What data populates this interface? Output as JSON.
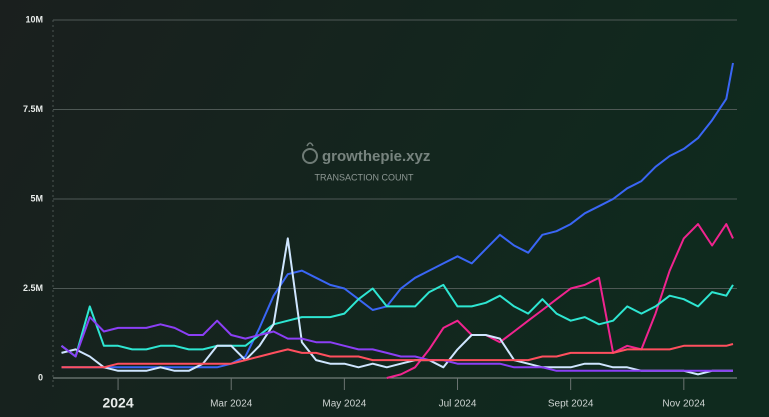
{
  "chart_data": {
    "type": "line",
    "title": "TRANSACTION COUNT",
    "watermark": "growthepie.xyz",
    "x": [
      -1,
      -0.75,
      -0.5,
      -0.25,
      0,
      0.25,
      0.5,
      0.75,
      1,
      1.25,
      1.5,
      1.75,
      2,
      2.25,
      2.5,
      2.75,
      3,
      3.25,
      3.5,
      3.75,
      4,
      4.25,
      4.5,
      4.75,
      5,
      5.25,
      5.5,
      5.75,
      6,
      6.25,
      6.5,
      6.75,
      7,
      7.25,
      7.5,
      7.75,
      8,
      8.25,
      8.5,
      8.75,
      9,
      9.25,
      9.5,
      9.75,
      10,
      10.25,
      10.5,
      10.75,
      10.87
    ],
    "xlim": [
      -1.15,
      10.94
    ],
    "xticks": [
      {
        "value": 0,
        "label": "2024"
      },
      {
        "value": 2,
        "label": "Mar 2024"
      },
      {
        "value": 4,
        "label": "May 2024"
      },
      {
        "value": 6,
        "label": "Jul 2024"
      },
      {
        "value": 8,
        "label": "Sept 2024"
      },
      {
        "value": 10,
        "label": "Nov 2024"
      }
    ],
    "ylim": [
      0,
      10
    ],
    "yticks": [
      0,
      {
        "value": 2.5,
        "label": "2.5M"
      },
      {
        "value": 5,
        "label": "5M"
      },
      {
        "value": 7.5,
        "label": "7.5M"
      },
      {
        "value": 10,
        "label": "10M"
      }
    ],
    "grid": true,
    "series": [
      {
        "color": "#3a66f5",
        "values": [
          0.3,
          0.3,
          0.3,
          0.3,
          0.3,
          0.3,
          0.3,
          0.3,
          0.3,
          0.3,
          0.3,
          0.3,
          0.4,
          0.6,
          1.4,
          2.3,
          2.9,
          3.0,
          2.8,
          2.6,
          2.5,
          2.2,
          1.9,
          2.0,
          2.5,
          2.8,
          3.0,
          3.2,
          3.4,
          3.2,
          3.6,
          4.0,
          3.7,
          3.5,
          4.0,
          4.1,
          4.3,
          4.6,
          4.8,
          5.0,
          5.3,
          5.5,
          5.9,
          6.2,
          6.4,
          6.7,
          7.2,
          7.8,
          8.8
        ]
      },
      {
        "color": "#f0248f",
        "values": [
          null,
          null,
          null,
          null,
          null,
          null,
          null,
          null,
          null,
          null,
          null,
          null,
          null,
          null,
          null,
          null,
          null,
          null,
          null,
          null,
          null,
          null,
          null,
          0.0,
          0.1,
          0.3,
          0.8,
          1.4,
          1.6,
          1.2,
          1.2,
          1.0,
          1.3,
          1.6,
          1.9,
          2.2,
          2.5,
          2.6,
          2.8,
          0.7,
          0.9,
          0.8,
          1.8,
          3.0,
          3.9,
          4.3,
          3.7,
          4.3,
          3.9
        ]
      },
      {
        "color": "#2ee6d2",
        "values": [
          0.9,
          0.6,
          2.0,
          0.9,
          0.9,
          0.8,
          0.8,
          0.9,
          0.9,
          0.8,
          0.8,
          0.9,
          0.9,
          0.9,
          1.2,
          1.5,
          1.6,
          1.7,
          1.7,
          1.7,
          1.8,
          2.2,
          2.5,
          2.0,
          2.0,
          2.0,
          2.4,
          2.6,
          2.0,
          2.0,
          2.1,
          2.3,
          2.0,
          1.8,
          2.2,
          1.8,
          1.6,
          1.7,
          1.5,
          1.6,
          2.0,
          1.8,
          2.0,
          2.3,
          2.2,
          2.0,
          2.4,
          2.3,
          2.6
        ]
      },
      {
        "color": "#cfe6ff",
        "values": [
          0.7,
          0.8,
          0.6,
          0.3,
          0.2,
          0.2,
          0.2,
          0.3,
          0.2,
          0.2,
          0.4,
          0.9,
          0.9,
          0.5,
          0.9,
          1.5,
          3.9,
          1.0,
          0.5,
          0.4,
          0.4,
          0.3,
          0.4,
          0.3,
          0.4,
          0.5,
          0.5,
          0.3,
          0.8,
          1.2,
          1.2,
          1.1,
          0.5,
          0.4,
          0.3,
          0.3,
          0.3,
          0.4,
          0.4,
          0.3,
          0.3,
          0.2,
          0.2,
          0.2,
          0.2,
          0.1,
          0.2,
          0.2,
          0.2
        ]
      },
      {
        "color": "#8b3ff5",
        "values": [
          0.9,
          0.6,
          1.7,
          1.3,
          1.4,
          1.4,
          1.4,
          1.5,
          1.4,
          1.2,
          1.2,
          1.6,
          1.2,
          1.1,
          1.2,
          1.3,
          1.1,
          1.1,
          1.0,
          1.0,
          0.9,
          0.8,
          0.8,
          0.7,
          0.6,
          0.6,
          0.5,
          0.5,
          0.4,
          0.4,
          0.4,
          0.4,
          0.3,
          0.3,
          0.3,
          0.2,
          0.2,
          0.2,
          0.2,
          0.2,
          0.2,
          0.2,
          0.2,
          0.2,
          0.2,
          0.2,
          0.2,
          0.2,
          0.2
        ]
      },
      {
        "color": "#ff4f5e",
        "values": [
          0.3,
          0.3,
          0.3,
          0.3,
          0.4,
          0.4,
          0.4,
          0.4,
          0.4,
          0.4,
          0.4,
          0.4,
          0.4,
          0.5,
          0.6,
          0.7,
          0.8,
          0.7,
          0.7,
          0.6,
          0.6,
          0.6,
          0.5,
          0.5,
          0.5,
          0.5,
          0.5,
          0.5,
          0.5,
          0.5,
          0.5,
          0.5,
          0.5,
          0.5,
          0.6,
          0.6,
          0.7,
          0.7,
          0.7,
          0.7,
          0.8,
          0.8,
          0.8,
          0.8,
          0.9,
          0.9,
          0.9,
          0.9,
          0.95
        ]
      }
    ]
  }
}
